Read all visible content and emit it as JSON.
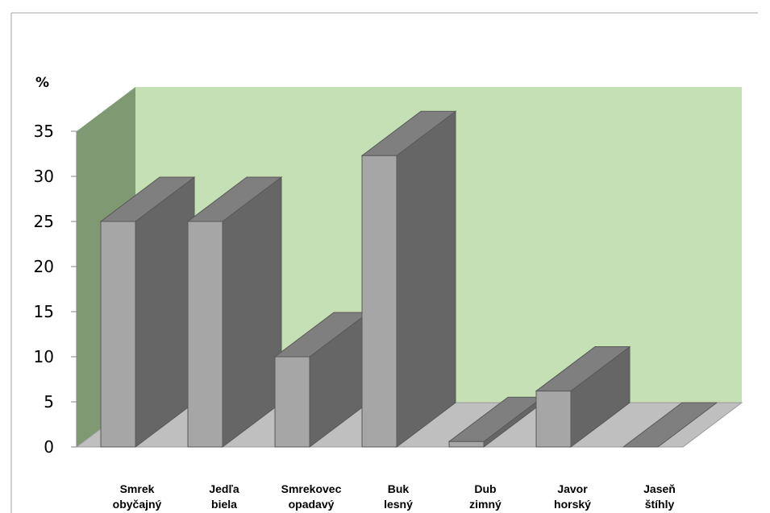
{
  "chart_data": {
    "type": "bar",
    "title": "",
    "xlabel": "",
    "ylabel": "%",
    "ylim": [
      0,
      35
    ],
    "yticks": [
      0,
      5,
      10,
      15,
      20,
      25,
      30,
      35
    ],
    "categories": [
      [
        "Smrek",
        "obyčajný"
      ],
      [
        "Jedľa",
        "biela"
      ],
      [
        "Smrekovec",
        "opadavý"
      ],
      [
        "Buk",
        "lesný"
      ],
      [
        "Dub",
        "zimný"
      ],
      [
        "Javor",
        "horský"
      ],
      [
        "Jaseň",
        "štíhly"
      ]
    ],
    "values": [
      25,
      25,
      10,
      32.3,
      0.6,
      6.2,
      0
    ],
    "style": "3d-column",
    "grid": false,
    "legend": "none"
  },
  "colors": {
    "back_wall": "#c5e0b4",
    "side_wall": "#7f9a73",
    "floor": "#bfbfbf",
    "bar_front": "#a6a6a6",
    "bar_side": "#666666",
    "bar_top": "#7f7f7f",
    "frame": "#a6a6a6"
  }
}
